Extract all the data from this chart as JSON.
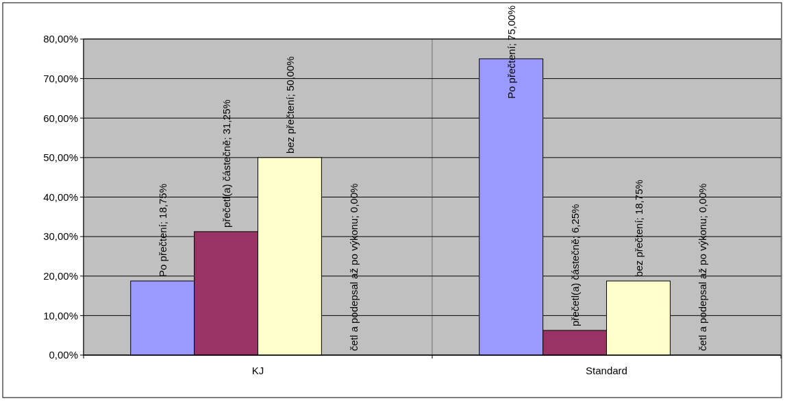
{
  "chart_data": {
    "type": "bar",
    "categories": [
      "KJ",
      "Standard"
    ],
    "series": [
      {
        "name": "Po přečtení",
        "color": "#9999ff",
        "values": [
          18.75,
          75
        ],
        "value_labels": [
          "; 18,75%",
          "; 75,00%"
        ]
      },
      {
        "name": "přečetl(a) částečně",
        "color": "#993366",
        "values": [
          31.25,
          6.25
        ],
        "value_labels": [
          "; 31,25%",
          "; 6,25%"
        ]
      },
      {
        "name": "bez přečtení",
        "color": "#ffffcc",
        "values": [
          50,
          18.75
        ],
        "value_labels": [
          "; 50,00%",
          "; 18,75%"
        ]
      },
      {
        "name": "četl a podepsal až  po výkonu",
        "color": "#ccffff",
        "values": [
          0,
          0
        ],
        "value_labels": [
          "; 0,00%",
          "; 0,00%"
        ]
      }
    ],
    "ylim": [
      0,
      80
    ],
    "yticks": [
      {
        "value": 0,
        "label": "0,00%"
      },
      {
        "value": 10,
        "label": "10,00%"
      },
      {
        "value": 20,
        "label": "20,00%"
      },
      {
        "value": 30,
        "label": "30,00%"
      },
      {
        "value": 40,
        "label": "40,00%"
      },
      {
        "value": 50,
        "label": "50,00%"
      },
      {
        "value": 60,
        "label": "60,00%"
      },
      {
        "value": 70,
        "label": "70,00%"
      },
      {
        "value": 80,
        "label": "80,00%"
      }
    ],
    "grid": "y",
    "legend": false
  }
}
